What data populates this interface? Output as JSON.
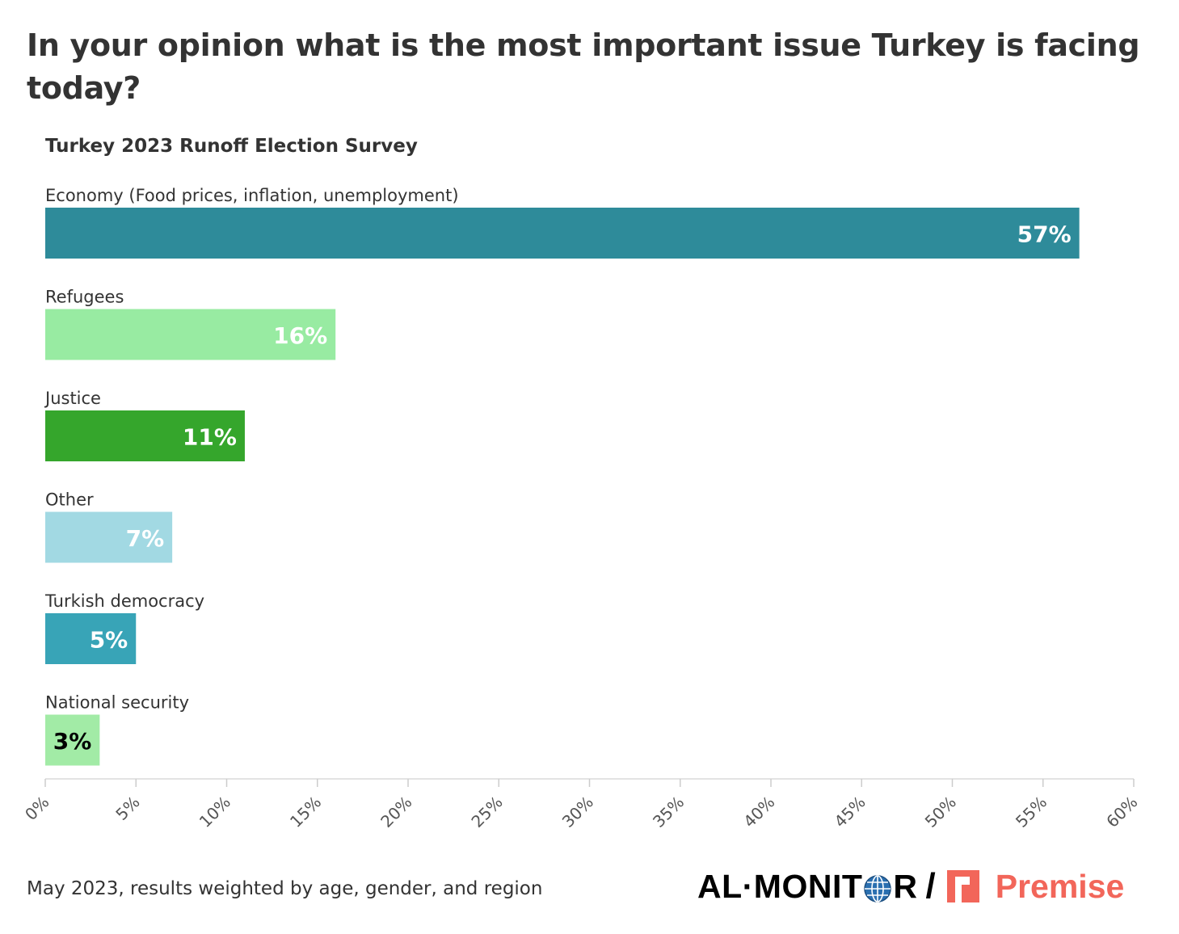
{
  "title": "In your opinion what is the most important issue Turkey is facing today?",
  "subtitle": "Turkey 2023 Runoff Election Survey",
  "source_note": "May 2023, results weighted by age, gender, and region",
  "brand": {
    "publisher": "AL·MONIT",
    "publisher_tail": "R",
    "slash": "/",
    "partner": "Premise",
    "publisher_color": "#000000",
    "partner_color": "#f2665a"
  },
  "chart_data": {
    "type": "bar",
    "orientation": "horizontal",
    "categories": [
      "Economy (Food prices, inflation, unemployment)",
      "Refugees",
      "Justice",
      "Other",
      "Turkish democracy",
      "National security"
    ],
    "values": [
      57,
      16,
      11,
      7,
      5,
      3
    ],
    "value_labels": [
      "57%",
      "16%",
      "11%",
      "7%",
      "5%",
      "3%"
    ],
    "colors": [
      "#2e8b9a",
      "#98eba2",
      "#35a62c",
      "#a2d9e3",
      "#38a4b7",
      "#a2eba6"
    ],
    "label_colors": [
      "#ffffff",
      "#ffffff",
      "#ffffff",
      "#ffffff",
      "#ffffff",
      "#000000"
    ],
    "xlim": [
      0,
      60
    ],
    "xticks": [
      0,
      5,
      10,
      15,
      20,
      25,
      30,
      35,
      40,
      45,
      50,
      55,
      60
    ],
    "xtick_labels": [
      "0%",
      "5%",
      "10%",
      "15%",
      "20%",
      "25%",
      "30%",
      "35%",
      "40%",
      "45%",
      "50%",
      "55%",
      "60%"
    ],
    "xlabel": "",
    "ylabel": "",
    "grid": false,
    "legend": "none"
  }
}
